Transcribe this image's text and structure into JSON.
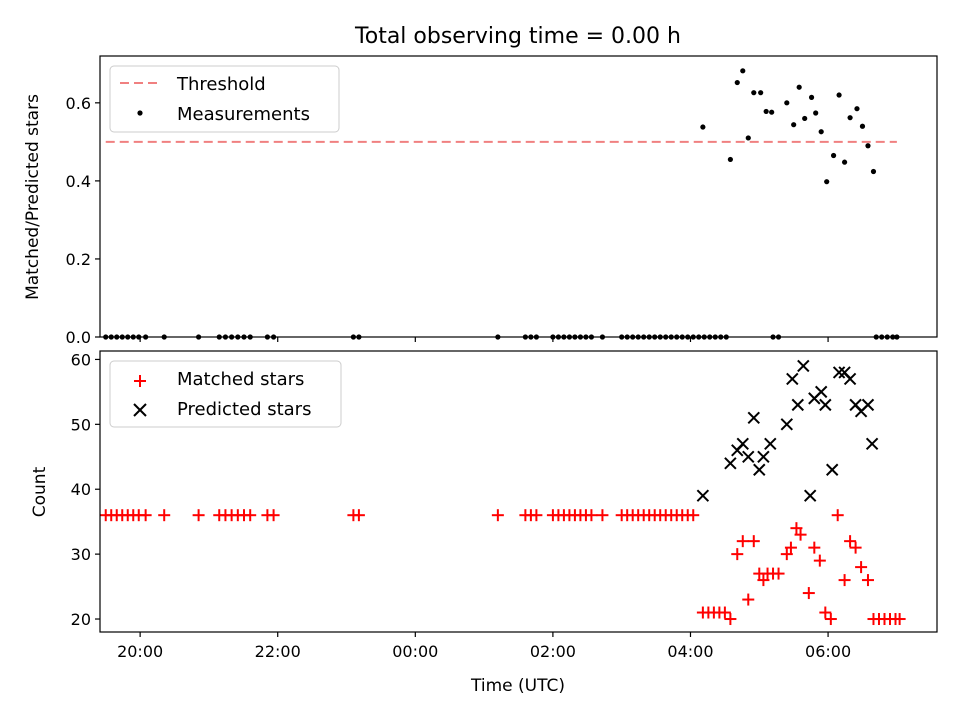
{
  "chart_data": [
    {
      "panel": "top",
      "type": "scatter",
      "title": "Total observing time = 0.00 h",
      "xlabel": "",
      "ylabel": "Matched/Predicted stars",
      "yticks": [
        "0.0",
        "0.2",
        "0.4",
        "0.6"
      ],
      "ylim": [
        0,
        0.72
      ],
      "legend_position": "top-left",
      "threshold": {
        "name": "Threshold",
        "value": 0.5,
        "x_range": [
          19.5,
          7.0
        ],
        "color": "#f08080",
        "style": "dashed"
      },
      "series": [
        {
          "name": "Measurements",
          "marker": "dot",
          "color": "#000000",
          "points": [
            [
              19.5,
              0
            ],
            [
              19.58,
              0
            ],
            [
              19.66,
              0
            ],
            [
              19.74,
              0
            ],
            [
              19.82,
              0
            ],
            [
              19.9,
              0
            ],
            [
              19.98,
              0
            ],
            [
              20.08,
              0
            ],
            [
              20.35,
              0
            ],
            [
              20.85,
              0
            ],
            [
              21.15,
              0
            ],
            [
              21.24,
              0
            ],
            [
              21.33,
              0
            ],
            [
              21.42,
              0
            ],
            [
              21.51,
              0
            ],
            [
              21.6,
              0
            ],
            [
              21.85,
              0
            ],
            [
              21.94,
              0
            ],
            [
              23.1,
              0
            ],
            [
              23.18,
              0
            ],
            [
              1.2,
              0
            ],
            [
              1.6,
              0
            ],
            [
              1.68,
              0
            ],
            [
              1.76,
              0
            ],
            [
              2.0,
              0
            ],
            [
              2.08,
              0
            ],
            [
              2.16,
              0
            ],
            [
              2.24,
              0
            ],
            [
              2.32,
              0
            ],
            [
              2.4,
              0
            ],
            [
              2.48,
              0
            ],
            [
              2.56,
              0
            ],
            [
              2.72,
              0
            ],
            [
              3.0,
              0
            ],
            [
              3.08,
              0
            ],
            [
              3.16,
              0
            ],
            [
              3.24,
              0
            ],
            [
              3.32,
              0
            ],
            [
              3.4,
              0
            ],
            [
              3.48,
              0
            ],
            [
              3.56,
              0
            ],
            [
              3.64,
              0
            ],
            [
              3.72,
              0
            ],
            [
              3.8,
              0
            ],
            [
              3.88,
              0
            ],
            [
              3.96,
              0
            ],
            [
              4.04,
              0
            ],
            [
              4.12,
              0
            ],
            [
              4.2,
              0
            ],
            [
              4.28,
              0
            ],
            [
              4.36,
              0
            ],
            [
              4.44,
              0
            ],
            [
              4.52,
              0
            ],
            [
              5.2,
              0
            ],
            [
              5.28,
              0
            ],
            [
              6.7,
              0
            ],
            [
              6.78,
              0
            ],
            [
              6.86,
              0
            ],
            [
              6.94,
              0
            ],
            [
              7.0,
              0
            ],
            [
              4.18,
              0.538
            ],
            [
              4.58,
              0.455
            ],
            [
              4.68,
              0.652
            ],
            [
              4.76,
              0.682
            ],
            [
              4.84,
              0.51
            ],
            [
              4.92,
              0.626
            ],
            [
              5.02,
              0.626
            ],
            [
              5.1,
              0.578
            ],
            [
              5.18,
              0.576
            ],
            [
              5.4,
              0.6
            ],
            [
              5.5,
              0.544
            ],
            [
              5.58,
              0.64
            ],
            [
              5.66,
              0.56
            ],
            [
              5.76,
              0.614
            ],
            [
              5.82,
              0.574
            ],
            [
              5.9,
              0.526
            ],
            [
              5.98,
              0.398
            ],
            [
              6.08,
              0.465
            ],
            [
              6.16,
              0.62
            ],
            [
              6.24,
              0.448
            ],
            [
              6.32,
              0.562
            ],
            [
              6.42,
              0.585
            ],
            [
              6.5,
              0.54
            ],
            [
              6.58,
              0.49
            ],
            [
              6.66,
              0.424
            ]
          ]
        }
      ]
    },
    {
      "panel": "bottom",
      "type": "scatter",
      "title": "",
      "xlabel": "Time (UTC)",
      "ylabel": "Count",
      "xticks": [
        "20:00",
        "22:00",
        "00:00",
        "02:00",
        "04:00",
        "06:00"
      ],
      "xlim": [
        "19:25",
        "07:35"
      ],
      "yticks": [
        "20",
        "30",
        "40",
        "50",
        "60"
      ],
      "ylim": [
        18,
        61.3
      ],
      "legend_position": "top-left",
      "series": [
        {
          "name": "Matched stars",
          "marker": "plus",
          "color": "#ff0000",
          "points": [
            [
              19.5,
              36
            ],
            [
              19.58,
              36
            ],
            [
              19.66,
              36
            ],
            [
              19.74,
              36
            ],
            [
              19.82,
              36
            ],
            [
              19.9,
              36
            ],
            [
              19.98,
              36
            ],
            [
              20.08,
              36
            ],
            [
              20.35,
              36
            ],
            [
              20.85,
              36
            ],
            [
              21.15,
              36
            ],
            [
              21.24,
              36
            ],
            [
              21.33,
              36
            ],
            [
              21.42,
              36
            ],
            [
              21.51,
              36
            ],
            [
              21.6,
              36
            ],
            [
              21.85,
              36
            ],
            [
              21.94,
              36
            ],
            [
              23.1,
              36
            ],
            [
              23.18,
              36
            ],
            [
              1.2,
              36
            ],
            [
              1.6,
              36
            ],
            [
              1.68,
              36
            ],
            [
              1.76,
              36
            ],
            [
              2.0,
              36
            ],
            [
              2.08,
              36
            ],
            [
              2.16,
              36
            ],
            [
              2.24,
              36
            ],
            [
              2.32,
              36
            ],
            [
              2.4,
              36
            ],
            [
              2.48,
              36
            ],
            [
              2.56,
              36
            ],
            [
              2.72,
              36
            ],
            [
              3.0,
              36
            ],
            [
              3.08,
              36
            ],
            [
              3.16,
              36
            ],
            [
              3.24,
              36
            ],
            [
              3.32,
              36
            ],
            [
              3.4,
              36
            ],
            [
              3.48,
              36
            ],
            [
              3.56,
              36
            ],
            [
              3.64,
              36
            ],
            [
              3.72,
              36
            ],
            [
              3.8,
              36
            ],
            [
              3.88,
              36
            ],
            [
              3.96,
              36
            ],
            [
              4.04,
              36
            ],
            [
              4.18,
              21
            ],
            [
              4.26,
              21
            ],
            [
              4.34,
              21
            ],
            [
              4.42,
              21
            ],
            [
              4.5,
              21
            ],
            [
              4.58,
              20
            ],
            [
              4.68,
              30
            ],
            [
              4.76,
              32
            ],
            [
              4.84,
              23
            ],
            [
              4.92,
              32
            ],
            [
              5.0,
              27
            ],
            [
              5.06,
              26
            ],
            [
              5.12,
              27
            ],
            [
              5.2,
              27
            ],
            [
              5.28,
              27
            ],
            [
              5.4,
              30
            ],
            [
              5.46,
              31
            ],
            [
              5.54,
              34
            ],
            [
              5.6,
              33
            ],
            [
              5.72,
              24
            ],
            [
              5.8,
              31
            ],
            [
              5.88,
              29
            ],
            [
              5.96,
              21
            ],
            [
              6.04,
              20
            ],
            [
              6.14,
              36
            ],
            [
              6.24,
              26
            ],
            [
              6.32,
              32
            ],
            [
              6.4,
              31
            ],
            [
              6.48,
              28
            ],
            [
              6.58,
              26
            ],
            [
              6.66,
              20
            ],
            [
              6.74,
              20
            ],
            [
              6.82,
              20
            ],
            [
              6.9,
              20
            ],
            [
              6.98,
              20
            ],
            [
              7.04,
              20
            ]
          ]
        },
        {
          "name": "Predicted stars",
          "marker": "x",
          "color": "#000000",
          "points": [
            [
              4.18,
              39
            ],
            [
              4.58,
              44
            ],
            [
              4.68,
              46
            ],
            [
              4.76,
              47
            ],
            [
              4.84,
              45
            ],
            [
              4.92,
              51
            ],
            [
              5.0,
              43
            ],
            [
              5.06,
              45
            ],
            [
              5.16,
              47
            ],
            [
              5.4,
              50
            ],
            [
              5.48,
              57
            ],
            [
              5.56,
              53
            ],
            [
              5.64,
              59
            ],
            [
              5.74,
              39
            ],
            [
              5.8,
              54
            ],
            [
              5.9,
              55
            ],
            [
              5.96,
              53
            ],
            [
              6.06,
              43
            ],
            [
              6.16,
              58
            ],
            [
              6.24,
              58
            ],
            [
              6.32,
              57
            ],
            [
              6.4,
              53
            ],
            [
              6.48,
              52
            ],
            [
              6.58,
              53
            ],
            [
              6.64,
              47
            ]
          ]
        }
      ]
    }
  ]
}
